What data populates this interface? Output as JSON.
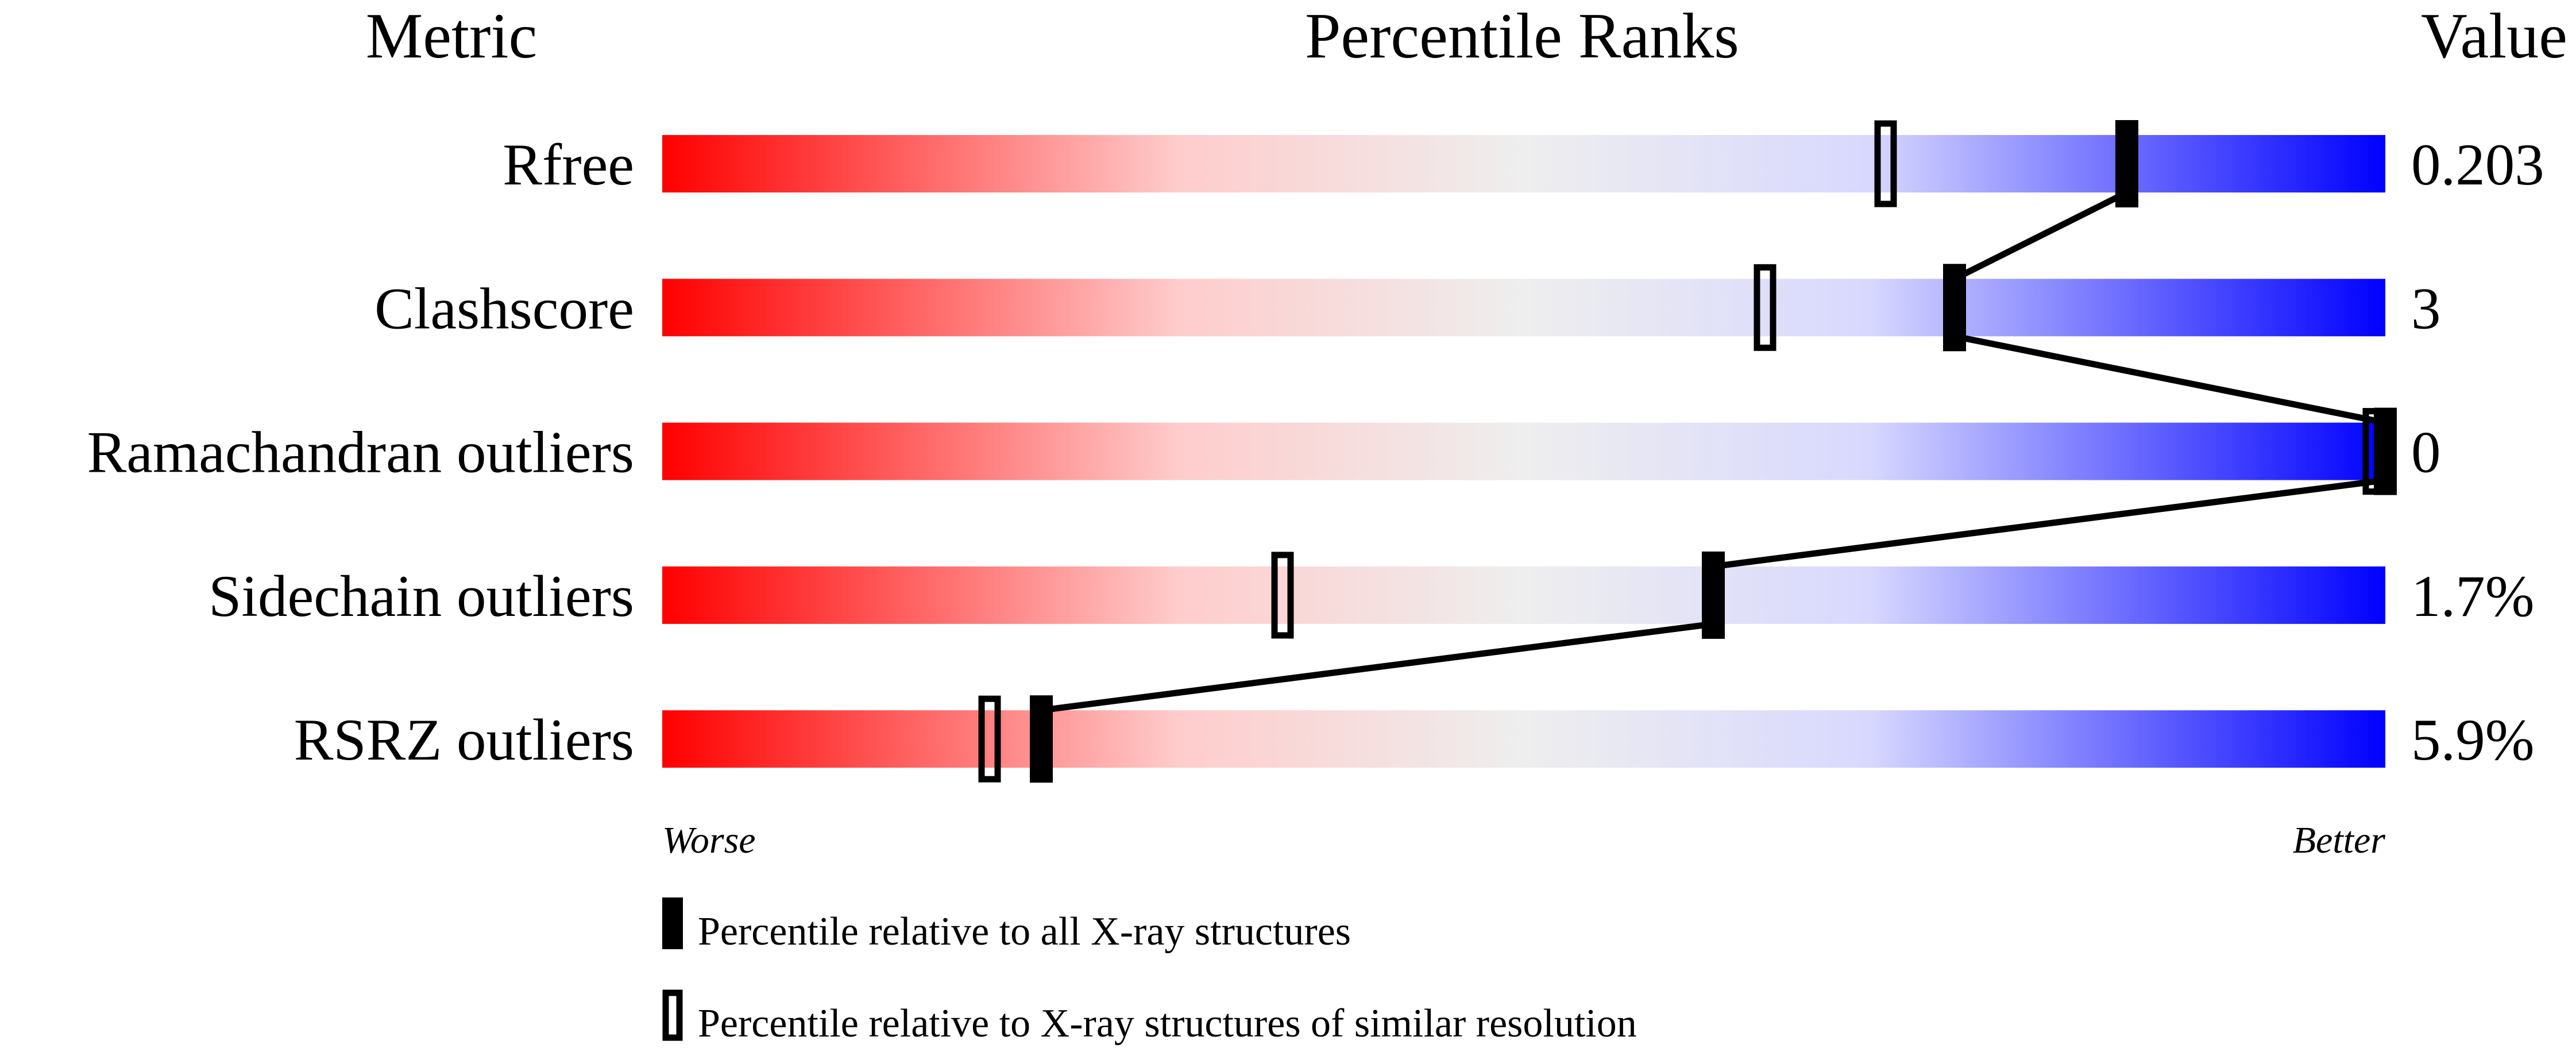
{
  "chart_data": {
    "type": "percentile-slider",
    "headers": {
      "metric": "Metric",
      "ranks": "Percentile Ranks",
      "value": "Value"
    },
    "xlim": [
      0,
      100
    ],
    "axis_labels": {
      "left": "Worse",
      "right": "Better"
    },
    "gradient_colors": [
      "#ff0000",
      "#eeeeee",
      "#0000ff"
    ],
    "rows": [
      {
        "metric": "Rfree",
        "value": "0.203",
        "percentile_all": 85,
        "percentile_similar": 71
      },
      {
        "metric": "Clashscore",
        "value": "3",
        "percentile_all": 75,
        "percentile_similar": 64
      },
      {
        "metric": "Ramachandran outliers",
        "value": "0",
        "percentile_all": 100,
        "percentile_similar": 100
      },
      {
        "metric": "Sidechain outliers",
        "value": "1.7%",
        "percentile_all": 61,
        "percentile_similar": 36
      },
      {
        "metric": "RSRZ outliers",
        "value": "5.9%",
        "percentile_all": 22,
        "percentile_similar": 19
      }
    ],
    "legend": [
      {
        "marker": "filled",
        "label": "Percentile relative to all X-ray structures"
      },
      {
        "marker": "open",
        "label": "Percentile relative to X-ray structures of similar resolution"
      }
    ]
  }
}
